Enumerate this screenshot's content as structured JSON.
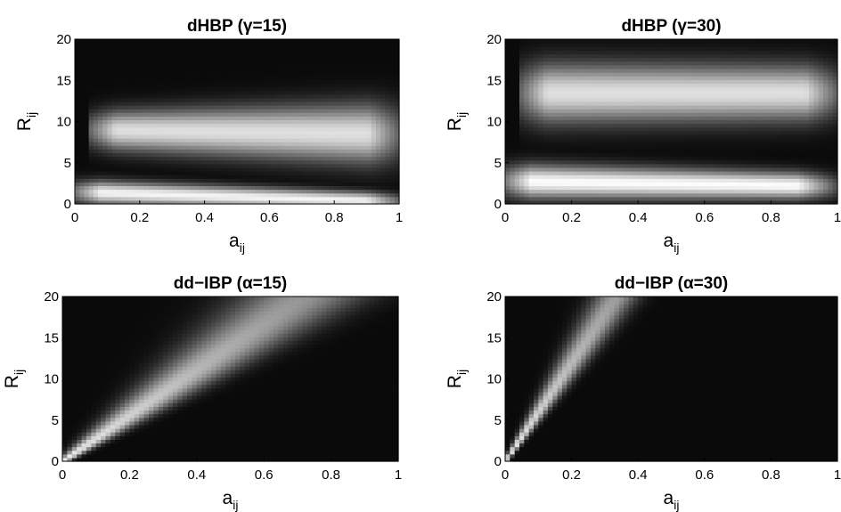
{
  "chart_data": [
    {
      "type": "heatmap",
      "title": "dHBP (γ=15)",
      "xlabel": "a",
      "xlabel_sub": "ij",
      "ylabel": "R",
      "ylabel_sub": "ij",
      "xlim": [
        0,
        1
      ],
      "ylim": [
        0,
        20
      ],
      "xticks": [
        "0",
        "0.2",
        "0.4",
        "0.6",
        "0.8",
        "1"
      ],
      "yticks": [
        "0",
        "5",
        "10",
        "15",
        "20"
      ],
      "colormap": "gray",
      "features": [
        {
          "kind": "band",
          "x_start": 0.0,
          "x_end": 1.0,
          "y_start": 1.5,
          "y_end": 0.3,
          "width_start": 1.4,
          "width_end": 1.0,
          "peak": 0.97
        },
        {
          "kind": "band",
          "x_start": 0.05,
          "x_end": 1.0,
          "y_start": 9.0,
          "y_end": 8.5,
          "width_start": 2.2,
          "width_end": 3.6,
          "peak": 0.88
        }
      ]
    },
    {
      "type": "heatmap",
      "title": "dHBP (γ=30)",
      "xlabel": "a",
      "xlabel_sub": "ij",
      "ylabel": "R",
      "ylabel_sub": "ij",
      "xlim": [
        0,
        1
      ],
      "ylim": [
        0,
        20
      ],
      "xticks": [
        "0",
        "0.2",
        "0.4",
        "0.6",
        "0.8",
        "1"
      ],
      "yticks": [
        "0",
        "5",
        "10",
        "15",
        "20"
      ],
      "colormap": "gray",
      "features": [
        {
          "kind": "band",
          "x_start": 0.0,
          "x_end": 0.98,
          "y_start": 2.8,
          "y_end": 2.2,
          "width_start": 2.0,
          "width_end": 1.5,
          "peak": 1.0
        },
        {
          "kind": "band",
          "x_start": 0.05,
          "x_end": 1.0,
          "y_start": 13.5,
          "y_end": 13.5,
          "width_start": 3.5,
          "width_end": 3.2,
          "peak": 0.88
        }
      ]
    },
    {
      "type": "heatmap",
      "title": "dd−IBP (α=15)",
      "xlabel": "a",
      "xlabel_sub": "ij",
      "ylabel": "R",
      "ylabel_sub": "ij",
      "xlim": [
        0,
        1
      ],
      "ylim": [
        0,
        20
      ],
      "xticks": [
        "0",
        "0.2",
        "0.4",
        "0.6",
        "0.8",
        "1"
      ],
      "yticks": [
        "0",
        "5",
        "10",
        "15",
        "20"
      ],
      "colormap": "gray",
      "features": [
        {
          "kind": "ray",
          "slope": 28,
          "width_base": 0.5,
          "width_growth": 0.23,
          "peak": 0.95,
          "falloff": 0.025
        }
      ]
    },
    {
      "type": "heatmap",
      "title": "dd−IBP (α=30)",
      "xlabel": "a",
      "xlabel_sub": "ij",
      "ylabel": "R",
      "ylabel_sub": "ij",
      "xlim": [
        0,
        1
      ],
      "ylim": [
        0,
        20
      ],
      "xticks": [
        "0",
        "0.2",
        "0.4",
        "0.6",
        "0.8",
        "1"
      ],
      "yticks": [
        "0",
        "5",
        "10",
        "15",
        "20"
      ],
      "colormap": "gray",
      "features": [
        {
          "kind": "ray",
          "slope": 60,
          "width_base": 0.4,
          "width_growth": 0.18,
          "peak": 0.95,
          "falloff": 0.022
        }
      ]
    }
  ]
}
